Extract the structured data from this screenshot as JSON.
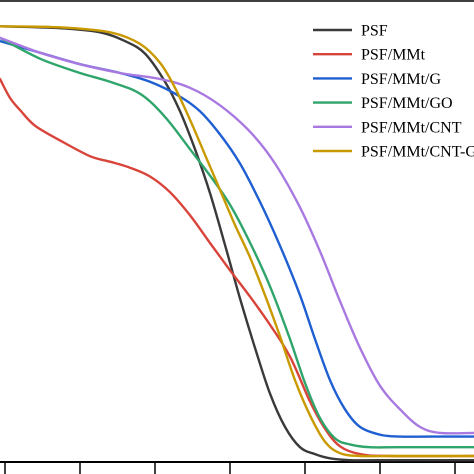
{
  "chart_data": {
    "type": "line",
    "title": "",
    "xlabel": "",
    "ylabel": "",
    "xlim": [
      0,
      474
    ],
    "ylim": [
      0,
      100
    ],
    "grid": false,
    "legend_position": "top-right",
    "series": [
      {
        "name": "PSF",
        "color": "#3a3a3a",
        "x": [
          0,
          60,
          100,
          125,
          145,
          165,
          180,
          195,
          210,
          225,
          240,
          255,
          270,
          285,
          300,
          315,
          330,
          350,
          380,
          474
        ],
        "y": [
          94.3,
          93.9,
          93.0,
          91.1,
          88.4,
          82.3,
          75.9,
          67.7,
          58.2,
          47.0,
          35.4,
          24.7,
          14.8,
          7.6,
          3.2,
          1.7,
          0.8,
          0.4,
          0.4,
          0.4
        ]
      },
      {
        "name": "PSF/MMt",
        "color": "#d9443a",
        "x": [
          0,
          10,
          20,
          35,
          60,
          90,
          110,
          130,
          150,
          170,
          190,
          210,
          230,
          250,
          270,
          290,
          310,
          325,
          340,
          360,
          390,
          474
        ],
        "y": [
          82.9,
          78.8,
          76.2,
          72.8,
          69.6,
          66.2,
          65.0,
          63.7,
          61.8,
          58.4,
          53.4,
          47.4,
          41.5,
          35.8,
          29.7,
          22.8,
          13.1,
          7.2,
          3.4,
          1.7,
          1.3,
          1.3
        ]
      },
      {
        "name": "PSF/MMt/G",
        "color": "#1f5fd1",
        "x": [
          0,
          40,
          80,
          120,
          150,
          180,
          200,
          220,
          240,
          260,
          280,
          300,
          315,
          330,
          345,
          360,
          380,
          400,
          430,
          474
        ],
        "y": [
          91.1,
          88.6,
          86.1,
          84.2,
          82.3,
          79.1,
          75.9,
          70.9,
          64.6,
          56.3,
          46.8,
          36.1,
          26.6,
          17.7,
          11.4,
          7.6,
          5.9,
          5.5,
          5.5,
          5.5
        ]
      },
      {
        "name": "PSF/MMt/GO",
        "color": "#2fa56b",
        "x": [
          0,
          40,
          80,
          110,
          140,
          165,
          190,
          210,
          230,
          250,
          270,
          290,
          305,
          320,
          335,
          350,
          370,
          400,
          474
        ],
        "y": [
          91.8,
          87.3,
          84.2,
          82.3,
          79.7,
          74.7,
          67.7,
          62.0,
          55.7,
          47.5,
          38.0,
          26.6,
          17.1,
          9.5,
          5.1,
          3.8,
          3.2,
          3.2,
          3.2
        ]
      },
      {
        "name": "PSF/MMt/CNT",
        "color": "#a879e0",
        "x": [
          0,
          40,
          80,
          120,
          160,
          190,
          220,
          250,
          275,
          300,
          320,
          340,
          360,
          380,
          400,
          420,
          440,
          474
        ],
        "y": [
          91.8,
          88.6,
          86.1,
          84.2,
          82.9,
          81.0,
          77.2,
          71.5,
          64.6,
          55.1,
          45.6,
          34.8,
          24.7,
          16.5,
          11.4,
          7.6,
          6.3,
          6.3
        ]
      },
      {
        "name": "PSF/MMt/CNT-G",
        "color": "#c99a00",
        "x": [
          0,
          60,
          110,
          140,
          160,
          175,
          190,
          205,
          220,
          235,
          250,
          265,
          280,
          295,
          310,
          325,
          340,
          360,
          390,
          474
        ],
        "y": [
          94.3,
          94.1,
          93.0,
          90.5,
          86.4,
          81.0,
          74.1,
          66.5,
          58.9,
          51.3,
          44.3,
          36.1,
          27.2,
          17.7,
          10.1,
          4.4,
          1.9,
          1.3,
          1.3,
          1.3
        ]
      }
    ]
  }
}
